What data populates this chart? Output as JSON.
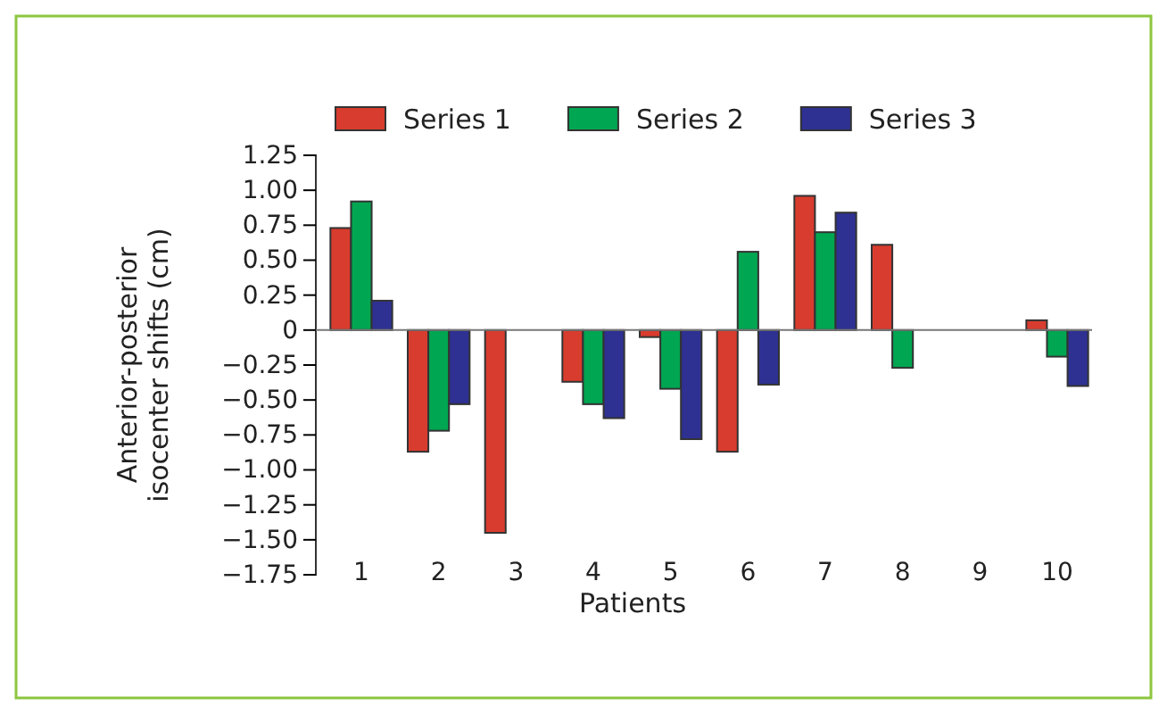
{
  "chart_data": {
    "type": "bar",
    "xlabel": "Patients",
    "ylabel": "Anterior-posterior isocenter shifts (cm)",
    "categories": [
      "1",
      "2",
      "3",
      "4",
      "5",
      "6",
      "7",
      "8",
      "9",
      "10"
    ],
    "series": [
      {
        "name": "Series 1",
        "color": "#d83c2e",
        "values": [
          0.73,
          -0.87,
          -1.45,
          -0.37,
          -0.05,
          -0.87,
          0.96,
          0.61,
          null,
          0.07
        ]
      },
      {
        "name": "Series 2",
        "color": "#00a651",
        "values": [
          0.92,
          -0.72,
          null,
          -0.53,
          -0.42,
          0.56,
          0.7,
          -0.27,
          null,
          -0.19
        ]
      },
      {
        "name": "Series 3",
        "color": "#2e3192",
        "values": [
          0.21,
          -0.53,
          null,
          -0.63,
          -0.78,
          -0.39,
          0.84,
          null,
          null,
          -0.4
        ]
      }
    ],
    "ylim": [
      -1.75,
      1.25
    ],
    "yticks": [
      {
        "value": 1.25,
        "label": "1.25"
      },
      {
        "value": 1,
        "label": "1.00"
      },
      {
        "value": 0.75,
        "label": "0.75"
      },
      {
        "value": 0.5,
        "label": "0.50"
      },
      {
        "value": 0.25,
        "label": "0.25"
      },
      0,
      {
        "value": -0.25,
        "label": "−0.25"
      },
      {
        "value": -0.5,
        "label": "−0.50"
      },
      {
        "value": -0.75,
        "label": "−0.75"
      },
      {
        "value": -1,
        "label": "−1.00"
      },
      {
        "value": -1.25,
        "label": "−1.25"
      },
      {
        "value": -1.5,
        "label": "−1.50"
      },
      {
        "value": -1.75,
        "label": "−1.75"
      }
    ],
    "legend": "top"
  }
}
